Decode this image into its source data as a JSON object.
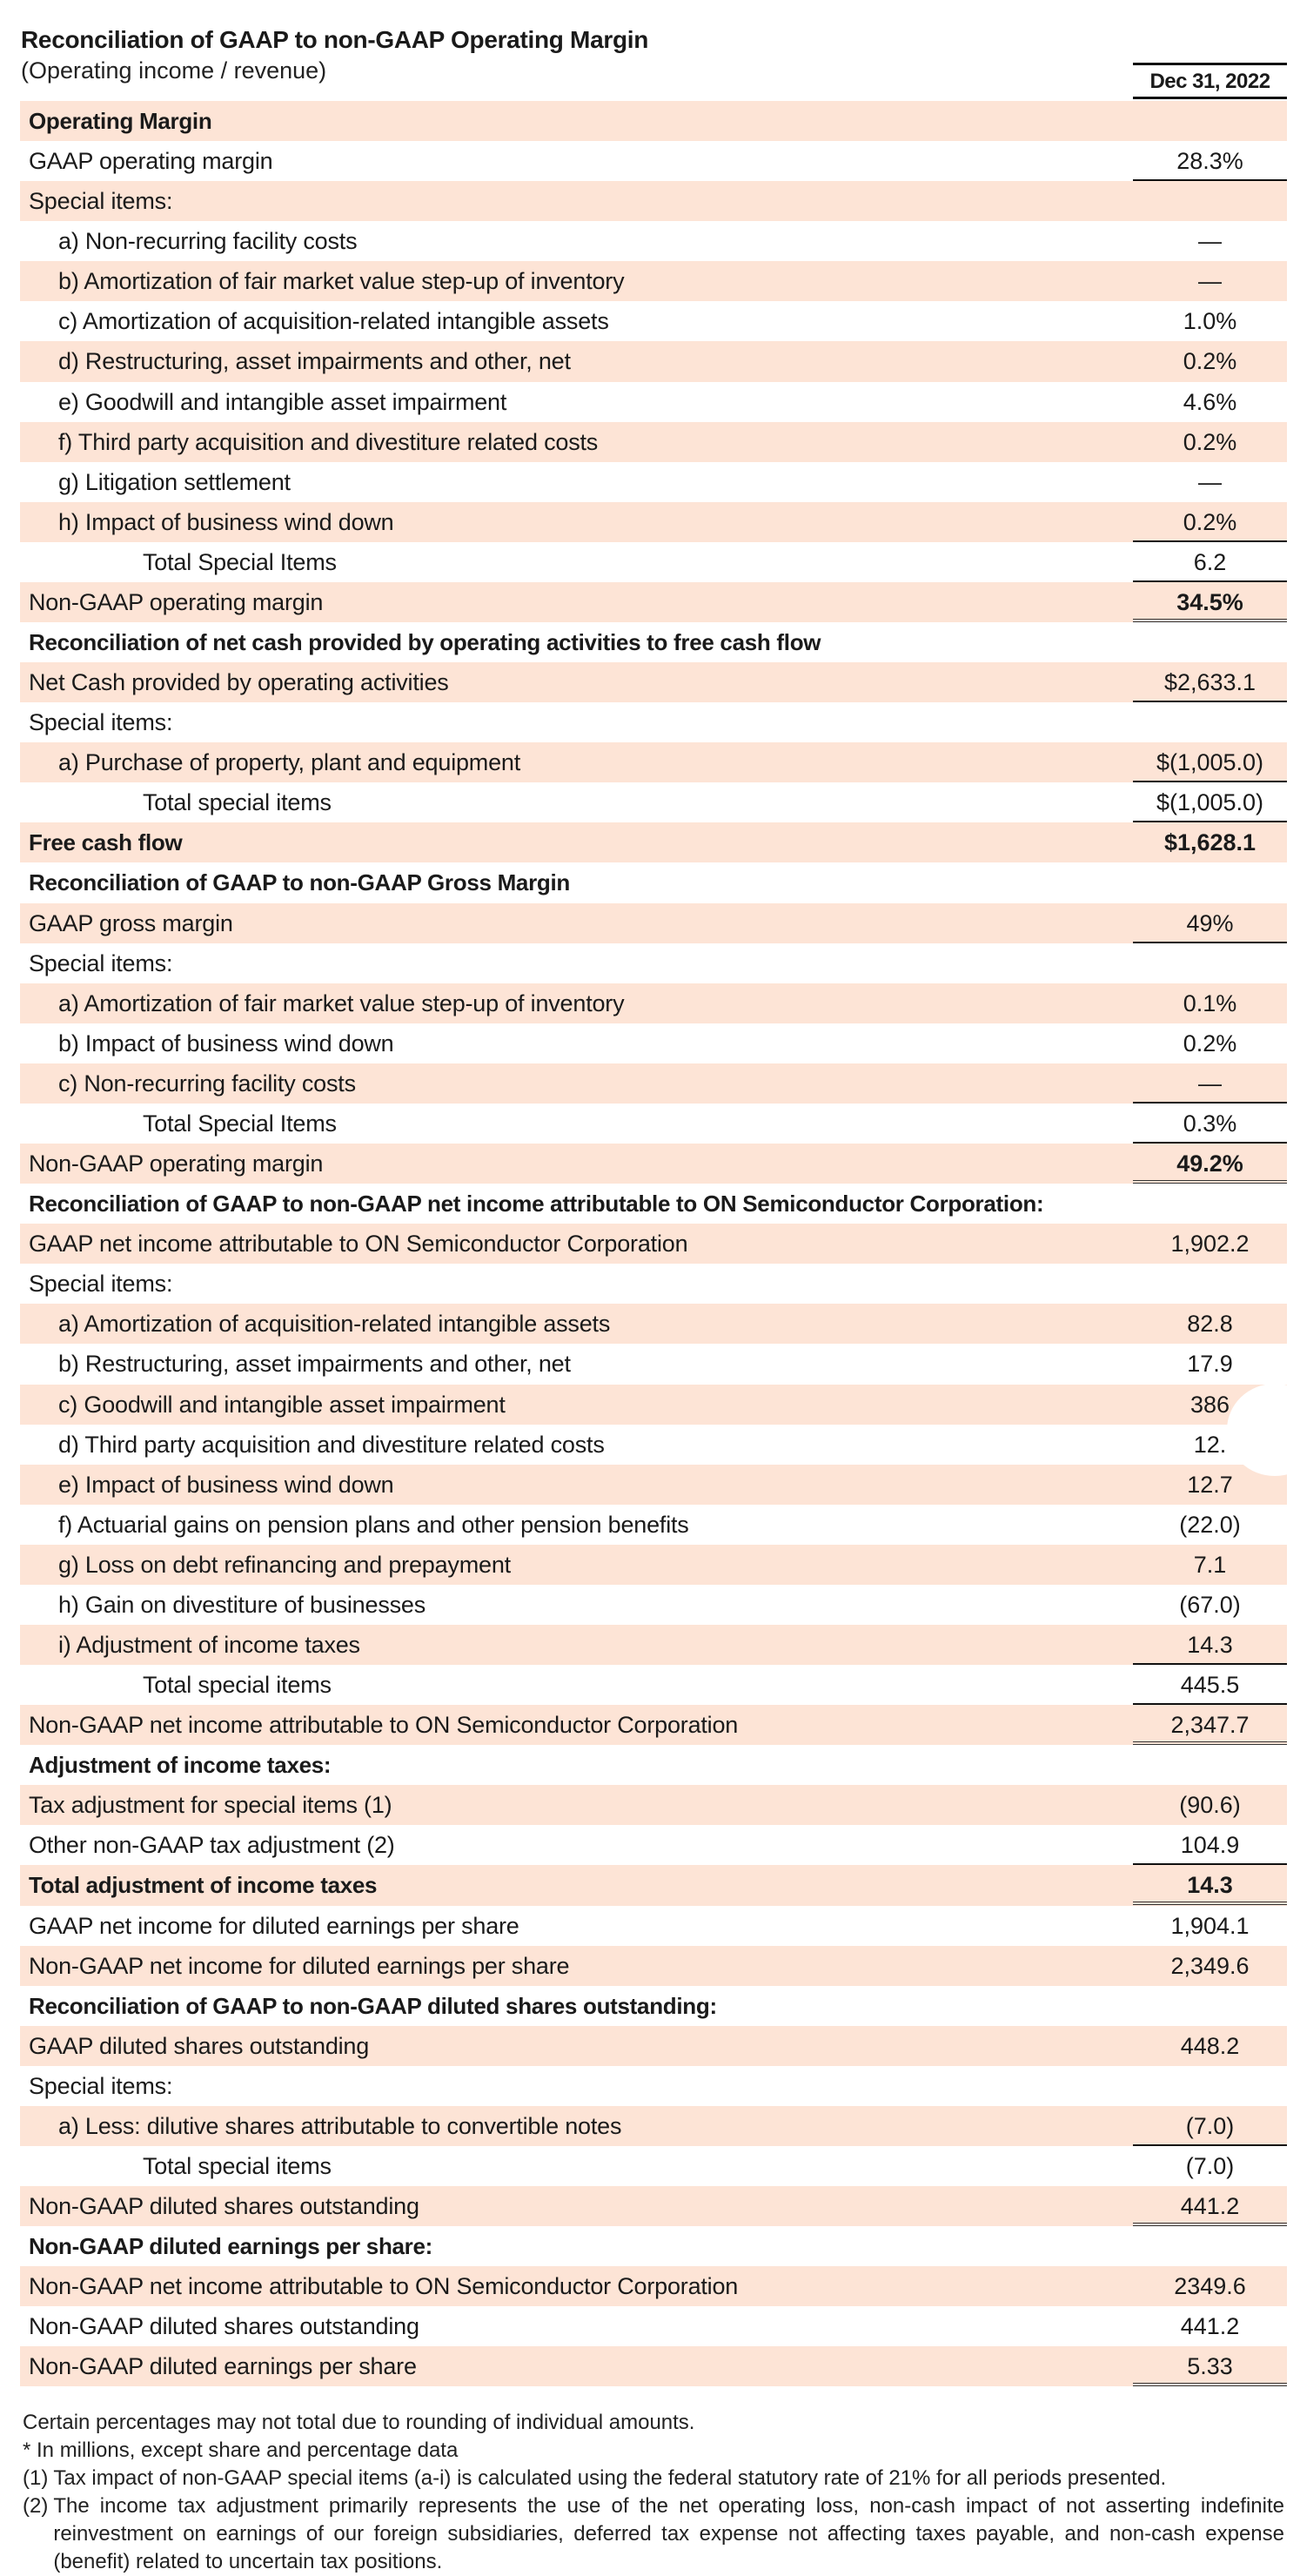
{
  "header": {
    "title": "Reconciliation of GAAP to non-GAAP Operating Margin",
    "subtitle": "(Operating income / revenue)",
    "column": "Dec 31, 2022"
  },
  "colors": {
    "row_shade": "#fde4d6",
    "text": "#1a1a1a"
  },
  "rows": [
    {
      "label": "Operating Margin",
      "value": "",
      "bold": true,
      "shaded": true
    },
    {
      "label": "GAAP operating margin",
      "value": "28.3%",
      "line": "single"
    },
    {
      "label": "Special items:",
      "value": "",
      "shaded": true
    },
    {
      "label": "a) Non-recurring facility costs",
      "value": "—",
      "indent": 1
    },
    {
      "label": "b) Amortization of fair market value step-up of inventory",
      "value": "—",
      "indent": 1,
      "shaded": true
    },
    {
      "label": "c) Amortization of acquisition-related intangible assets",
      "value": "1.0%",
      "indent": 1
    },
    {
      "label": "d) Restructuring, asset impairments and other, net",
      "value": "0.2%",
      "indent": 1,
      "shaded": true
    },
    {
      "label": "e) Goodwill and intangible asset impairment",
      "value": "4.6%",
      "indent": 1
    },
    {
      "label": "f) Third party acquisition and divestiture related costs",
      "value": "0.2%",
      "indent": 1,
      "shaded": true
    },
    {
      "label": "g) Litigation settlement",
      "value": "—",
      "indent": 1
    },
    {
      "label": "h) Impact of business wind down",
      "value": "0.2%",
      "indent": 1,
      "shaded": true,
      "line": "single"
    },
    {
      "label": "Total Special Items",
      "value": "6.2",
      "indent": 2,
      "line": "single"
    },
    {
      "label": "Non-GAAP operating margin",
      "value": "34.5%",
      "shaded": true,
      "value_bold": true,
      "line": "double"
    },
    {
      "label": "Reconciliation of net cash provided by operating activities to free cash flow",
      "value": "",
      "bold": true
    },
    {
      "label": "Net Cash provided by operating activities",
      "value": "$2,633.1",
      "shaded": true,
      "line": "single"
    },
    {
      "label": "Special items:",
      "value": ""
    },
    {
      "label": "a) Purchase of property, plant and equipment",
      "value": "$(1,005.0)",
      "indent": 1,
      "shaded": true,
      "line": "single"
    },
    {
      "label": "Total special items",
      "value": "$(1,005.0)",
      "indent": 2,
      "line": "single"
    },
    {
      "label": "Free cash flow",
      "value": "$1,628.1",
      "bold": true,
      "shaded": true,
      "value_bold": true
    },
    {
      "label": "Reconciliation of GAAP to non-GAAP Gross Margin",
      "value": "",
      "bold": true
    },
    {
      "label": "GAAP gross margin",
      "value": "49%",
      "shaded": true,
      "line": "single"
    },
    {
      "label": "Special items:",
      "value": ""
    },
    {
      "label": "a) Amortization of fair market value step-up of inventory",
      "value": "0.1%",
      "indent": 1,
      "shaded": true
    },
    {
      "label": "b) Impact of business wind down",
      "value": "0.2%",
      "indent": 1
    },
    {
      "label": "c) Non-recurring facility costs",
      "value": "—",
      "indent": 1,
      "shaded": true,
      "line": "single"
    },
    {
      "label": "Total Special Items",
      "value": "0.3%",
      "indent": 2,
      "line": "single"
    },
    {
      "label": "Non-GAAP operating margin",
      "value": "49.2%",
      "shaded": true,
      "value_bold": true,
      "line": "double"
    },
    {
      "label": "Reconciliation of GAAP to non-GAAP net income attributable to ON Semiconductor Corporation:",
      "value": "",
      "bold": true
    },
    {
      "label": "GAAP net income attributable to ON Semiconductor Corporation",
      "value": "1,902.2",
      "shaded": true
    },
    {
      "label": "Special items:",
      "value": ""
    },
    {
      "label": "a) Amortization of acquisition-related intangible assets",
      "value": "82.8",
      "indent": 1,
      "shaded": true
    },
    {
      "label": "b) Restructuring, asset impairments and other, net",
      "value": "17.9",
      "indent": 1
    },
    {
      "label": "c) Goodwill and intangible asset impairment",
      "value": "386",
      "indent": 1,
      "shaded": true
    },
    {
      "label": "d) Third party acquisition and divestiture related costs",
      "value": "12.",
      "indent": 1
    },
    {
      "label": "e) Impact of business wind down",
      "value": "12.7",
      "indent": 1,
      "shaded": true
    },
    {
      "label": "f) Actuarial gains on pension plans and other pension benefits",
      "value": "(22.0)",
      "indent": 1
    },
    {
      "label": "g) Loss on debt refinancing and prepayment",
      "value": "7.1",
      "indent": 1,
      "shaded": true
    },
    {
      "label": "h) Gain on divestiture of businesses",
      "value": "(67.0)",
      "indent": 1
    },
    {
      "label": "i) Adjustment of income taxes",
      "value": "14.3",
      "indent": 1,
      "shaded": true,
      "line": "single"
    },
    {
      "label": "Total special items",
      "value": "445.5",
      "indent": 2,
      "line": "single"
    },
    {
      "label": "Non-GAAP net income attributable to ON Semiconductor Corporation",
      "value": "2,347.7",
      "shaded": true,
      "line": "double"
    },
    {
      "label": "Adjustment of income taxes:",
      "value": "",
      "bold": true
    },
    {
      "label": "Tax adjustment for special items (1)",
      "value": "(90.6)",
      "shaded": true
    },
    {
      "label": "Other non-GAAP tax adjustment (2)",
      "value": "104.9",
      "line": "single"
    },
    {
      "label": "Total adjustment of income taxes",
      "value": "14.3",
      "bold": true,
      "shaded": true,
      "line": "double"
    },
    {
      "label": "GAAP net income for diluted earnings per share",
      "value": "1,904.1"
    },
    {
      "label": "Non-GAAP net income for diluted earnings per share",
      "value": "2,349.6",
      "shaded": true
    },
    {
      "label": "Reconciliation of GAAP to non-GAAP diluted shares outstanding:",
      "value": "",
      "bold": true
    },
    {
      "label": "GAAP diluted shares outstanding",
      "value": "448.2",
      "shaded": true
    },
    {
      "label": "Special items:",
      "value": ""
    },
    {
      "label": "a) Less: dilutive shares attributable to convertible notes",
      "value": "(7.0)",
      "indent": 1,
      "shaded": true,
      "line": "single"
    },
    {
      "label": "Total special items",
      "value": "(7.0)",
      "indent": 2
    },
    {
      "label": "Non-GAAP diluted shares outstanding",
      "value": "441.2",
      "shaded": true,
      "line": "double"
    },
    {
      "label": "Non-GAAP diluted earnings per share:",
      "value": "",
      "bold": true
    },
    {
      "label": "Non-GAAP net income attributable to ON Semiconductor Corporation",
      "value": "2349.6",
      "shaded": true
    },
    {
      "label": "Non-GAAP diluted shares outstanding",
      "value": "441.2"
    },
    {
      "label": "Non-GAAP diluted earnings per share",
      "value": "5.33",
      "shaded": true,
      "line": "double"
    }
  ],
  "notes": {
    "rounding": "Certain percentages may not total due to rounding of individual amounts.",
    "units": "* In millions, except share and percentage data",
    "fn1_mark": "(1)",
    "fn1": "Tax impact of non-GAAP special items (a-i) is calculated using the federal statutory rate of 21% for all periods presented.",
    "fn2_mark": "(2)",
    "fn2": "The income tax adjustment primarily represents the use of the net operating loss, non-cash impact of not asserting indefinite reinvestment on earnings of our foreign subsidiaries, deferred tax expense not affecting taxes payable, and non-cash expense (benefit) related to uncertain tax positions."
  }
}
